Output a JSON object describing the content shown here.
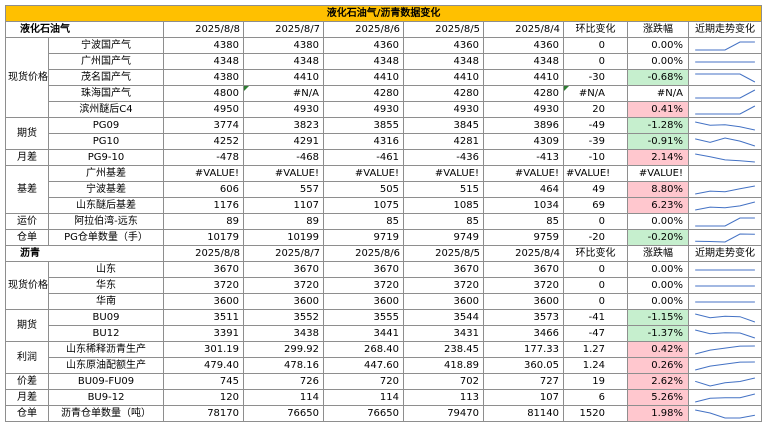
{
  "title": "液化石油气/沥青数据变化",
  "lpg": {
    "name": "液化石油气",
    "dates": [
      "2025/8/8",
      "2025/8/7",
      "2025/8/6",
      "2025/8/5",
      "2025/8/4"
    ],
    "chg_header": "环比变化",
    "pct_header": "涨跌幅",
    "trend_header": "近期走势变化",
    "rows": [
      {
        "cat": "现货价格",
        "label": "宁波国产气",
        "v": [
          "4380",
          "4380",
          "4360",
          "4360",
          "4360"
        ],
        "chg": "0",
        "pct": "0.00%",
        "sign": "zero",
        "trend": [
          4360,
          4360,
          4360,
          4380,
          4380
        ]
      },
      {
        "cat": "",
        "label": "广州国产气",
        "v": [
          "4348",
          "4348",
          "4348",
          "4348",
          "4348"
        ],
        "chg": "0",
        "pct": "0.00%",
        "sign": "zero",
        "trend": [
          4348,
          4348,
          4348,
          4348,
          4348
        ]
      },
      {
        "cat": "",
        "label": "茂名国产气",
        "v": [
          "4380",
          "4410",
          "4410",
          "4410",
          "4410"
        ],
        "chg": "-30",
        "pct": "-0.68%",
        "sign": "neg",
        "trend": [
          4410,
          4410,
          4410,
          4410,
          4380
        ]
      },
      {
        "cat": "",
        "label": "珠海国产气",
        "v": [
          "4800",
          "#N/A",
          "4280",
          "4280",
          "4280"
        ],
        "chg": "#N/A",
        "pct": "#N/A",
        "sign": "zero",
        "trend": [
          4280,
          4280,
          4280,
          4280,
          4800
        ]
      },
      {
        "cat": "",
        "label": "滨州醚后C4",
        "v": [
          "4950",
          "4930",
          "4930",
          "4930",
          "4930"
        ],
        "chg": "20",
        "pct": "0.41%",
        "sign": "pos",
        "trend": [
          4930,
          4930,
          4930,
          4930,
          4950
        ]
      },
      {
        "cat": "期货",
        "label": "PG09",
        "v": [
          "3774",
          "3823",
          "3855",
          "3845",
          "3896"
        ],
        "chg": "-49",
        "pct": "-1.28%",
        "sign": "neg",
        "trend": [
          3896,
          3845,
          3855,
          3823,
          3774
        ]
      },
      {
        "cat": "",
        "label": "PG10",
        "v": [
          "4252",
          "4291",
          "4316",
          "4281",
          "4309"
        ],
        "chg": "-39",
        "pct": "-0.91%",
        "sign": "neg",
        "trend": [
          4309,
          4281,
          4316,
          4291,
          4252
        ]
      },
      {
        "cat": "月差",
        "label": "PG9-10",
        "v": [
          "-478",
          "-468",
          "-461",
          "-436",
          "-413"
        ],
        "chg": "-10",
        "pct": "2.14%",
        "sign": "pos",
        "trend": [
          -413,
          -436,
          -461,
          -468,
          -478
        ]
      },
      {
        "cat": "基差",
        "label": "广州基差",
        "v": [
          "#VALUE!",
          "#VALUE!",
          "#VALUE!",
          "#VALUE!",
          "#VALUE!"
        ],
        "chg": "#VALUE!",
        "pct": "#VALUE!",
        "sign": "zero",
        "trend": []
      },
      {
        "cat": "",
        "label": "宁波基差",
        "v": [
          "606",
          "557",
          "505",
          "515",
          "464"
        ],
        "chg": "49",
        "pct": "8.80%",
        "sign": "pos",
        "trend": [
          464,
          515,
          505,
          557,
          606
        ]
      },
      {
        "cat": "",
        "label": "山东醚后基差",
        "v": [
          "1176",
          "1107",
          "1075",
          "1085",
          "1034"
        ],
        "chg": "69",
        "pct": "6.23%",
        "sign": "pos",
        "trend": [
          1034,
          1085,
          1075,
          1107,
          1176
        ]
      },
      {
        "cat": "运价",
        "label": "阿拉伯湾-远东",
        "v": [
          "89",
          "89",
          "85",
          "85",
          "85"
        ],
        "chg": "0",
        "pct": "0.00%",
        "sign": "zero",
        "trend": [
          85,
          85,
          85,
          89,
          89
        ]
      },
      {
        "cat": "仓单",
        "label": "PG仓单数量（手）",
        "v": [
          "10179",
          "10199",
          "9719",
          "9749",
          "9759"
        ],
        "chg": "-20",
        "pct": "-0.20%",
        "sign": "neg",
        "trend": [
          9759,
          9749,
          9719,
          10199,
          10179
        ]
      }
    ]
  },
  "asphalt": {
    "name": "沥青",
    "dates": [
      "2025/8/8",
      "2025/8/7",
      "2025/8/6",
      "2025/8/5",
      "2025/8/4"
    ],
    "chg_header": "环比变化",
    "pct_header": "涨跌幅",
    "trend_header": "近期走势变化",
    "rows": [
      {
        "cat": "现货价格",
        "label": "山东",
        "v": [
          "3670",
          "3670",
          "3670",
          "3670",
          "3670"
        ],
        "chg": "0",
        "pct": "0.00%",
        "sign": "zero",
        "trend": [
          3670,
          3670,
          3670,
          3670,
          3670
        ]
      },
      {
        "cat": "",
        "label": "华东",
        "v": [
          "3720",
          "3720",
          "3720",
          "3720",
          "3720"
        ],
        "chg": "0",
        "pct": "0.00%",
        "sign": "zero",
        "trend": [
          3720,
          3720,
          3720,
          3720,
          3720
        ]
      },
      {
        "cat": "",
        "label": "华南",
        "v": [
          "3600",
          "3600",
          "3600",
          "3600",
          "3600"
        ],
        "chg": "0",
        "pct": "0.00%",
        "sign": "zero",
        "trend": [
          3600,
          3600,
          3600,
          3600,
          3600
        ]
      },
      {
        "cat": "期货",
        "label": "BU09",
        "v": [
          "3511",
          "3552",
          "3555",
          "3544",
          "3573"
        ],
        "chg": "-41",
        "pct": "-1.15%",
        "sign": "neg",
        "trend": [
          3573,
          3544,
          3555,
          3552,
          3511
        ]
      },
      {
        "cat": "",
        "label": "BU12",
        "v": [
          "3391",
          "3438",
          "3441",
          "3431",
          "3466"
        ],
        "chg": "-47",
        "pct": "-1.37%",
        "sign": "neg",
        "trend": [
          3466,
          3431,
          3441,
          3438,
          3391
        ]
      },
      {
        "cat": "利润",
        "label": "山东稀释沥青生产",
        "v": [
          "301.19",
          "299.92",
          "268.40",
          "238.45",
          "177.33"
        ],
        "chg": "1.27",
        "pct": "0.42%",
        "sign": "pos",
        "trend": [
          177.33,
          238.45,
          268.4,
          299.92,
          301.19
        ]
      },
      {
        "cat": "",
        "label": "山东原油配额生产",
        "v": [
          "479.40",
          "478.16",
          "447.60",
          "418.89",
          "360.05"
        ],
        "chg": "1.24",
        "pct": "0.26%",
        "sign": "pos",
        "trend": [
          360.05,
          418.89,
          447.6,
          478.16,
          479.4
        ]
      },
      {
        "cat": "价差",
        "label": "BU09-FU09",
        "v": [
          "745",
          "726",
          "720",
          "702",
          "727"
        ],
        "chg": "19",
        "pct": "2.62%",
        "sign": "pos",
        "trend": [
          727,
          702,
          720,
          726,
          745
        ]
      },
      {
        "cat": "月差",
        "label": "BU9-12",
        "v": [
          "120",
          "114",
          "114",
          "113",
          "107"
        ],
        "chg": "6",
        "pct": "5.26%",
        "sign": "pos",
        "trend": [
          107,
          113,
          114,
          114,
          120
        ]
      },
      {
        "cat": "仓单",
        "label": "沥青仓单数量（吨）",
        "v": [
          "78170",
          "76650",
          "76650",
          "79470",
          "81140"
        ],
        "chg": "1520",
        "pct": "1.98%",
        "sign": "pos",
        "trend": [
          81140,
          79470,
          76650,
          76650,
          78170
        ]
      }
    ]
  }
}
